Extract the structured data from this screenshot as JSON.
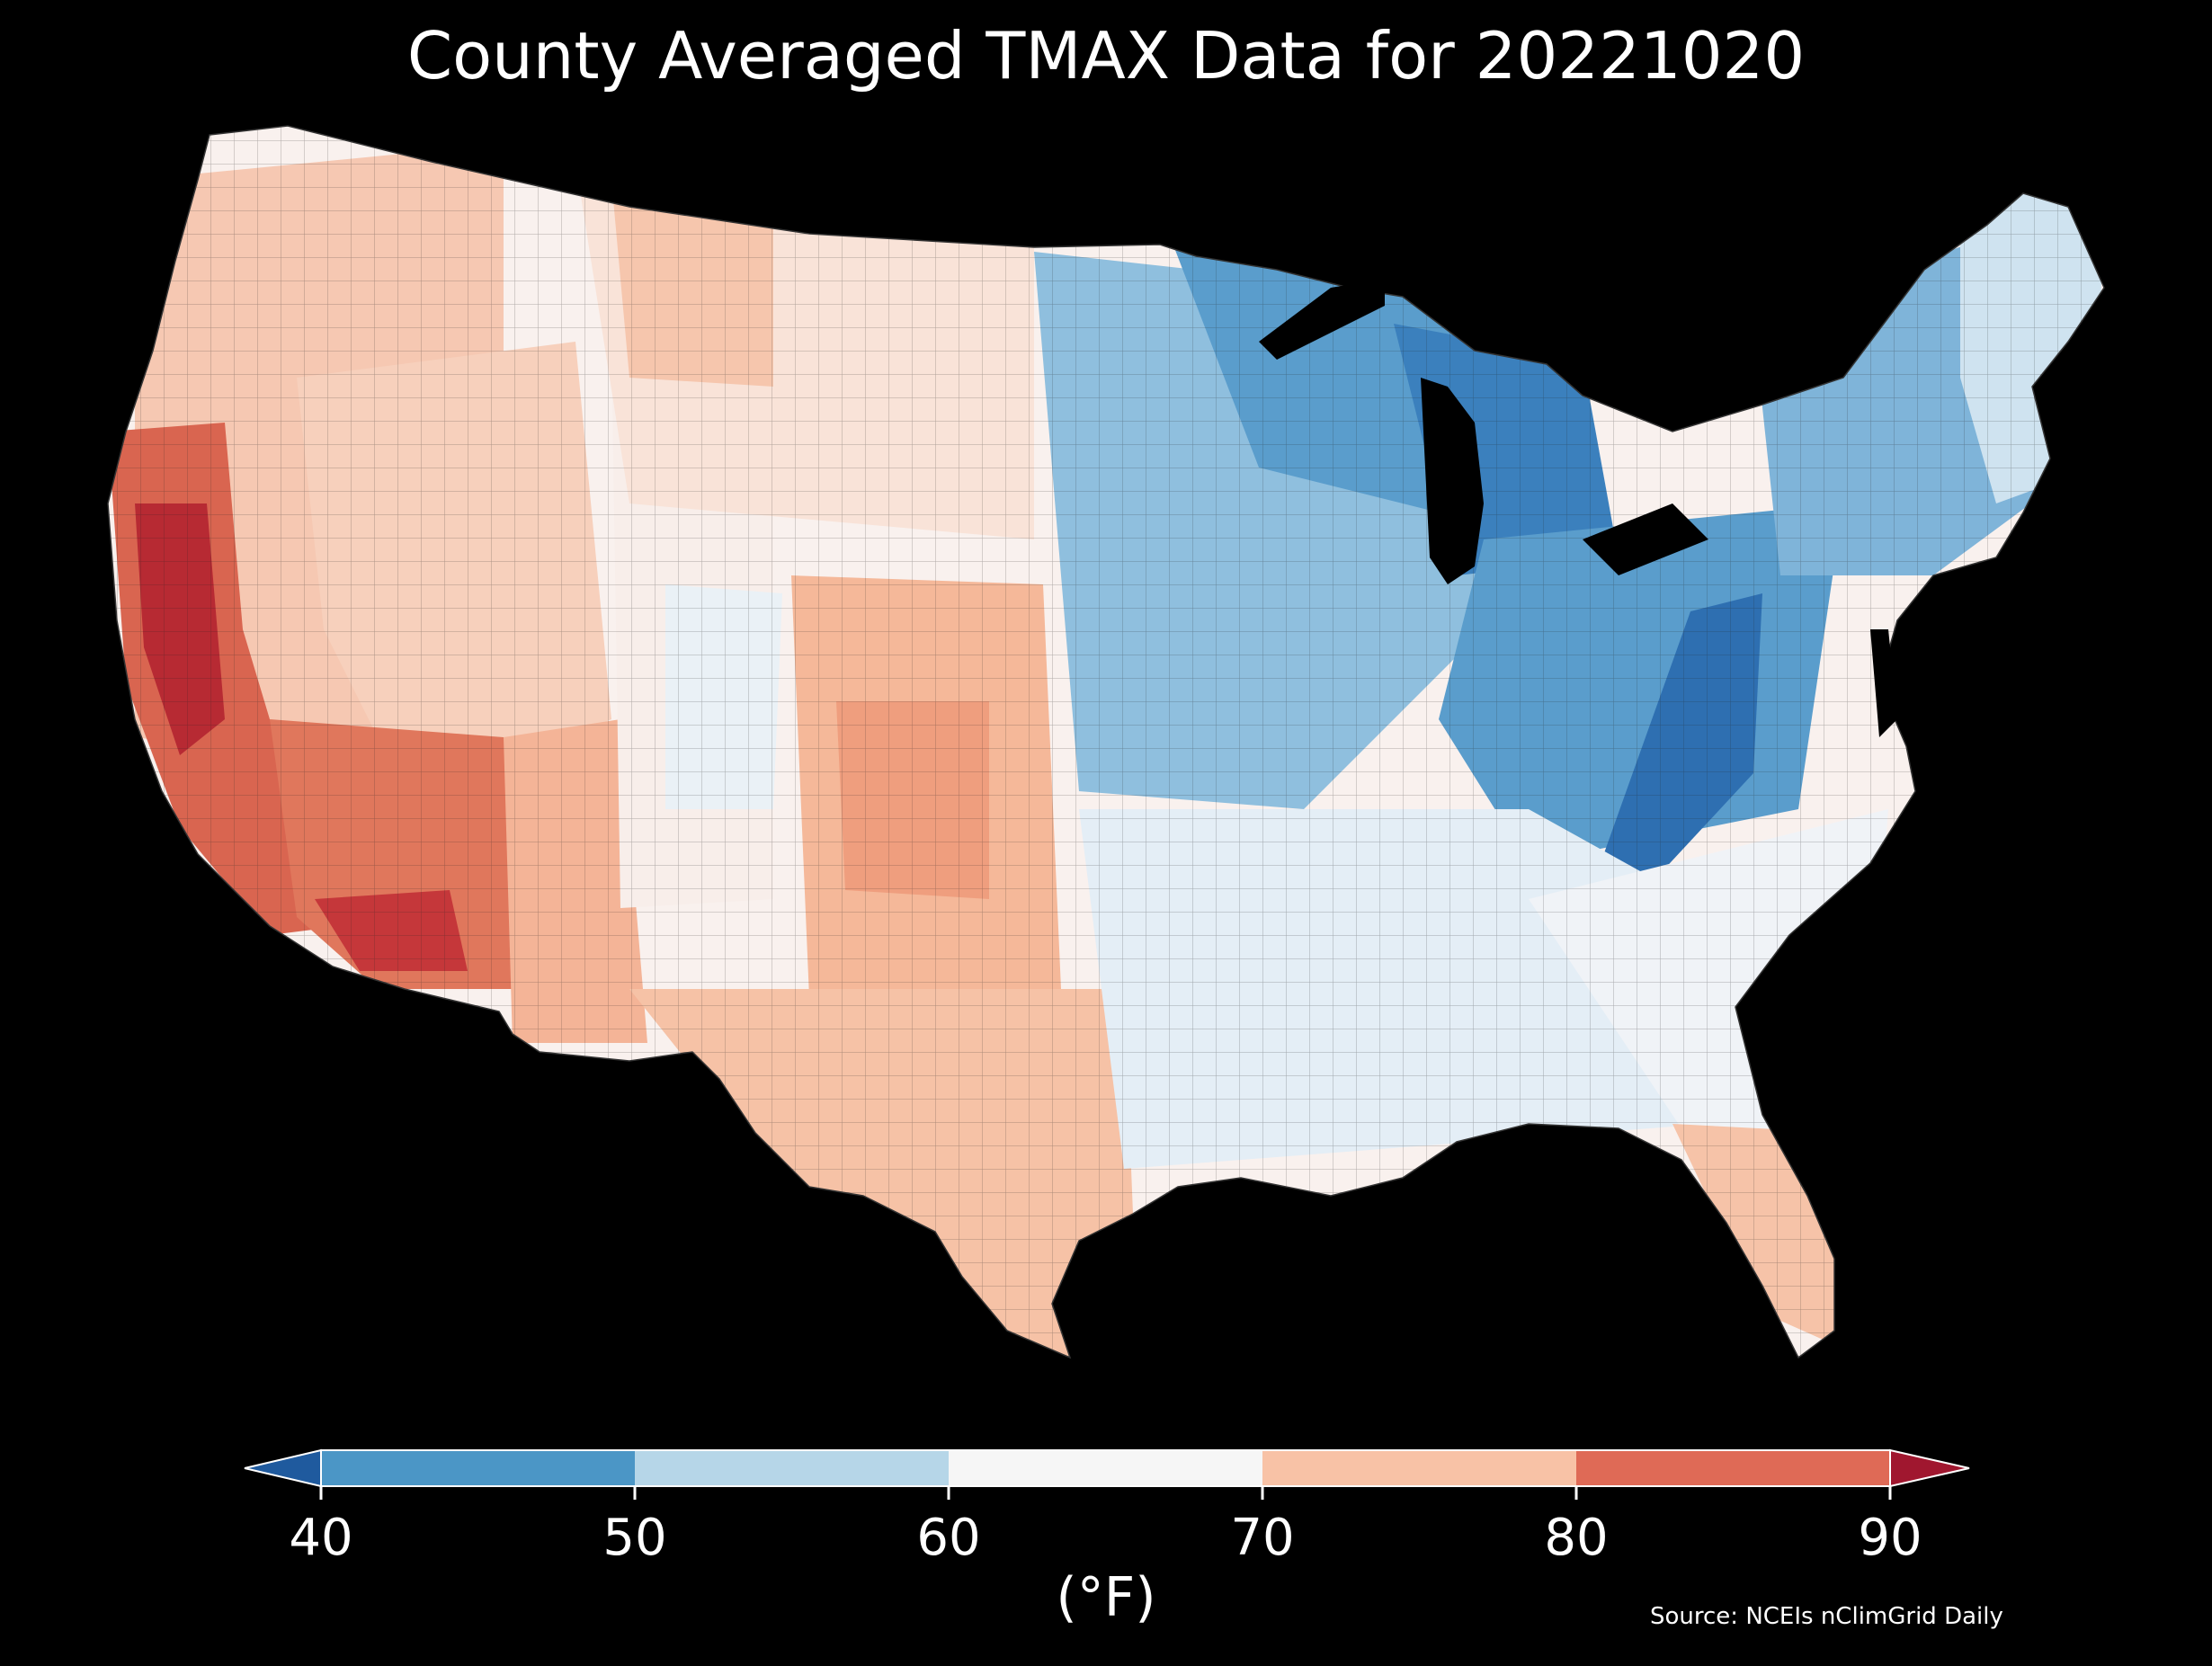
{
  "title": "County Averaged TMAX Data for 20221020",
  "colorbar": {
    "unit_label": "(°F)",
    "ticks": [
      "40",
      "50",
      "60",
      "70",
      "80",
      "90"
    ],
    "bins": [
      {
        "range": "<40",
        "color": "#1f5a9e"
      },
      {
        "range": "40-50",
        "color": "#4b96c6"
      },
      {
        "range": "50-60",
        "color": "#b6d6e8"
      },
      {
        "range": "60-70",
        "color": "#f6f6f6"
      },
      {
        "range": "70-80",
        "color": "#f8c2a6"
      },
      {
        "range": "80-90",
        "color": "#df6a56"
      },
      {
        "range": ">90",
        "color": "#a0172f"
      }
    ]
  },
  "source": "Source: NCEIs nClimGrid Daily"
}
